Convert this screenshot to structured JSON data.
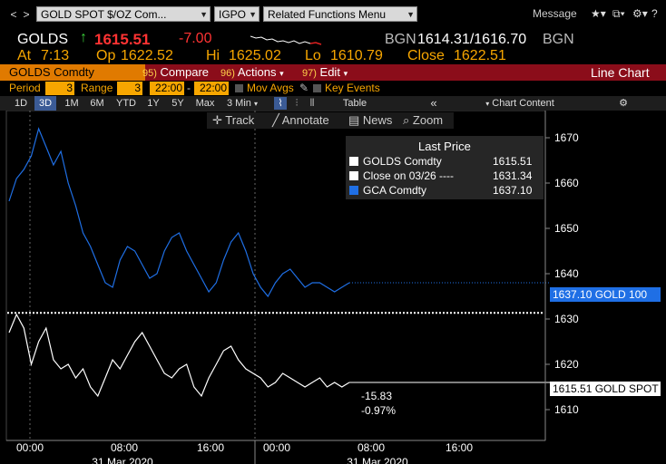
{
  "toolbar": {
    "nav_back": "<",
    "nav_forward": ">",
    "security_value": "GOLD SPOT $/OZ Com...",
    "function_value": "IGPO",
    "related_menu": "Related Functions Menu",
    "message": "Message",
    "icons": [
      "star-icon",
      "dock-icon",
      "gear-icon",
      "help-icon"
    ]
  },
  "quote": {
    "ticker": "GOLDS",
    "last": "1615.51",
    "change": "-7.00",
    "bgn_label": "BGN",
    "bid_ask": "1614.31/1616.70",
    "bgn_label2": "BGN",
    "at_label": "At",
    "time": "7:13",
    "op_label": "Op",
    "open": "1622.52",
    "hi_label": "Hi",
    "high": "1625.02",
    "lo_label": "Lo",
    "low": "1610.79",
    "close_label": "Close",
    "close": "1622.51"
  },
  "menubar": {
    "security": "GOLDS Comdty",
    "compare_num": "95)",
    "compare": "Compare",
    "actions_num": "96)",
    "actions": "Actions",
    "edit_num": "97)",
    "edit": "Edit",
    "chart_type": "Line Chart"
  },
  "period": {
    "period_label": "Period",
    "period_value": "3",
    "range_label": "Range",
    "range_value": "3",
    "time_from": "22:00",
    "time_sep": "-",
    "time_to": "22:00",
    "mov_avgs": "Mov Avgs",
    "key_events": "Key Events"
  },
  "ranges": {
    "buttons": [
      "1D",
      "3D",
      "1M",
      "6M",
      "YTD",
      "1Y",
      "5Y",
      "Max"
    ],
    "selected": "3D",
    "interval": "3 Min",
    "table": "Table",
    "collapse": "«",
    "chart_content": "Chart Content"
  },
  "tools": {
    "track": "Track",
    "annotate": "Annotate",
    "news": "News",
    "zoom": "Zoom"
  },
  "legend": {
    "title": "Last Price",
    "rows": [
      {
        "name": "GOLDS Comdty",
        "value": "1615.51",
        "color": "#ffffff"
      },
      {
        "name": "Close on 03/26 ----",
        "value": "1631.34",
        "color": "#ffffff"
      },
      {
        "name": "GCA Comdty",
        "value": "1637.10",
        "color": "#1f6fe5"
      }
    ]
  },
  "tags": {
    "gca": "1637.10 GOLD 100",
    "golds": "1615.51 GOLD SPOT",
    "diff": "-15.83",
    "diff_pct": "-0.97%"
  },
  "chart_data": {
    "type": "line",
    "y_ticks": [
      "1670",
      "1660",
      "1650",
      "1640",
      "1630",
      "1620",
      "1610"
    ],
    "ylim": [
      1606,
      1674
    ],
    "x_ticks": [
      "00:00",
      "08:00",
      "16:00",
      "00:00",
      "08:00",
      "16:00"
    ],
    "date_labels": [
      "31 Mar 2020",
      "31 Mar 2020"
    ],
    "reference_close": 1631.34,
    "series": [
      {
        "name": "GCA Comdty",
        "color": "#1f6fe5",
        "values": [
          1656,
          1661,
          1663,
          1666,
          1672,
          1668,
          1664,
          1667,
          1660,
          1655,
          1649,
          1646,
          1642,
          1638,
          1637,
          1643,
          1646,
          1645,
          1642,
          1639,
          1640,
          1645,
          1648,
          1649,
          1645,
          1642,
          1639,
          1636,
          1638,
          1643,
          1647,
          1649,
          1645,
          1640,
          1637,
          1635,
          1638,
          1640,
          1641,
          1639,
          1637,
          1638,
          1638,
          1637,
          1636,
          1637,
          1638
        ]
      },
      {
        "name": "GOLDS Comdty",
        "color": "#ffffff",
        "values": [
          1627,
          1631,
          1628,
          1620,
          1625,
          1628,
          1621,
          1619,
          1620,
          1617,
          1619,
          1615,
          1613,
          1617,
          1621,
          1619,
          1622,
          1625,
          1627,
          1624,
          1621,
          1618,
          1617,
          1619,
          1620,
          1615,
          1613,
          1617,
          1620,
          1623,
          1624,
          1621,
          1619,
          1618,
          1617,
          1615,
          1616,
          1618,
          1617,
          1616,
          1615,
          1616,
          1617,
          1615,
          1616,
          1615,
          1616
        ]
      }
    ]
  }
}
